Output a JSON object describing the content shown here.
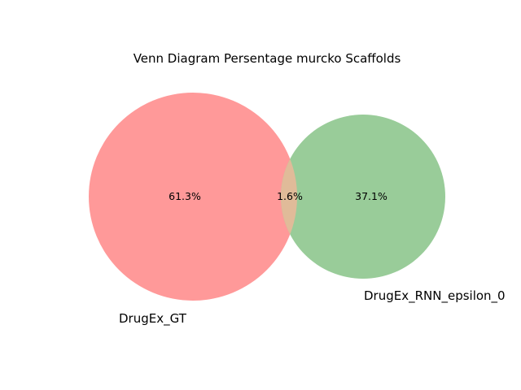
{
  "title": "Venn Diagram Persentage murcko Scaffolds",
  "sets": [
    {
      "name": "DrugEx_GT",
      "color": "#ff9999"
    },
    {
      "name": "DrugEx_RNN_epsilon_0",
      "color": "#99cc99"
    }
  ],
  "intersection_color": "#e0bb99",
  "regions": {
    "only_a": "61.3%",
    "both": "1.6%",
    "only_b": "37.1%"
  }
}
